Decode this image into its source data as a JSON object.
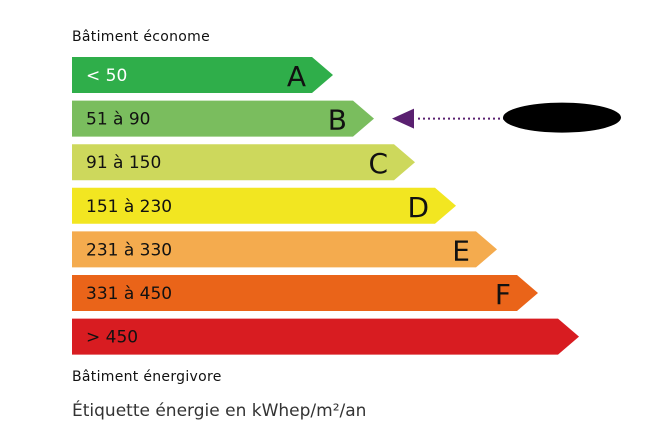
{
  "header_label": "Bâtiment économe",
  "footer_label": "Bâtiment énergivore",
  "unit_caption": "Étiquette énergie en kWhep/m²/an",
  "classes": [
    {
      "letter": "A",
      "range": "< 50",
      "color": "#2fae4a",
      "text_color": "#ffffff"
    },
    {
      "letter": "B",
      "range": "51 à 90",
      "color": "#7abd5e",
      "text_color": "#111111"
    },
    {
      "letter": "C",
      "range": "91 à 150",
      "color": "#cdd85c",
      "text_color": "#111111"
    },
    {
      "letter": "D",
      "range": "151 à 230",
      "color": "#f2e621",
      "text_color": "#111111"
    },
    {
      "letter": "E",
      "range": "231 à 330",
      "color": "#f4ab4e",
      "text_color": "#111111"
    },
    {
      "letter": "F",
      "range": "331 à 450",
      "color": "#ea6419",
      "text_color": "#111111"
    },
    {
      "letter": "",
      "range": "> 450",
      "color": "#d81c21",
      "text_color": "#111111"
    }
  ],
  "indicator": {
    "class": "B",
    "color": "#5a2070",
    "value_redacted": true
  }
}
